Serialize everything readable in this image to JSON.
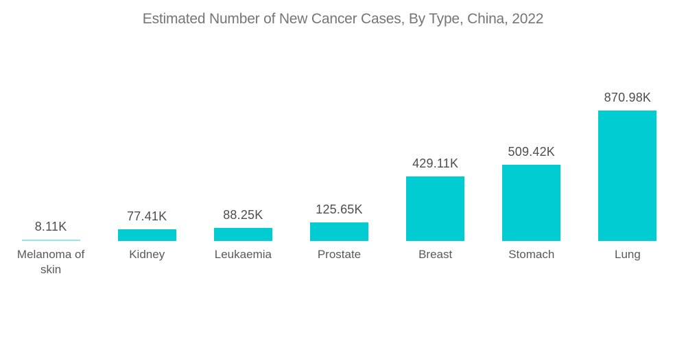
{
  "chart_data": {
    "type": "bar",
    "title": "Estimated Number of New Cancer Cases, By Type, China, 2022",
    "categories": [
      "Melanoma of skin",
      "Kidney",
      "Leukaemia",
      "Prostate",
      "Breast",
      "Stomach",
      "Lung"
    ],
    "values": [
      8.11,
      77.41,
      88.25,
      125.65,
      429.11,
      509.42,
      870.98
    ],
    "unit": "K",
    "value_labels": [
      "8.11K",
      "77.41K",
      "88.25K",
      "125.65K",
      "429.11K",
      "509.42K",
      "870.98K"
    ],
    "ylim": [
      0,
      900
    ],
    "grid": false,
    "legend_position": "none",
    "xlabel": "",
    "ylabel": "",
    "colors": {
      "bar": "#00CCD2",
      "tiny_bar": "#8EE9EC",
      "title_text": "#757576",
      "value_text": "#4d4d4d",
      "category_text": "#595959",
      "background": "#ffffff"
    }
  }
}
